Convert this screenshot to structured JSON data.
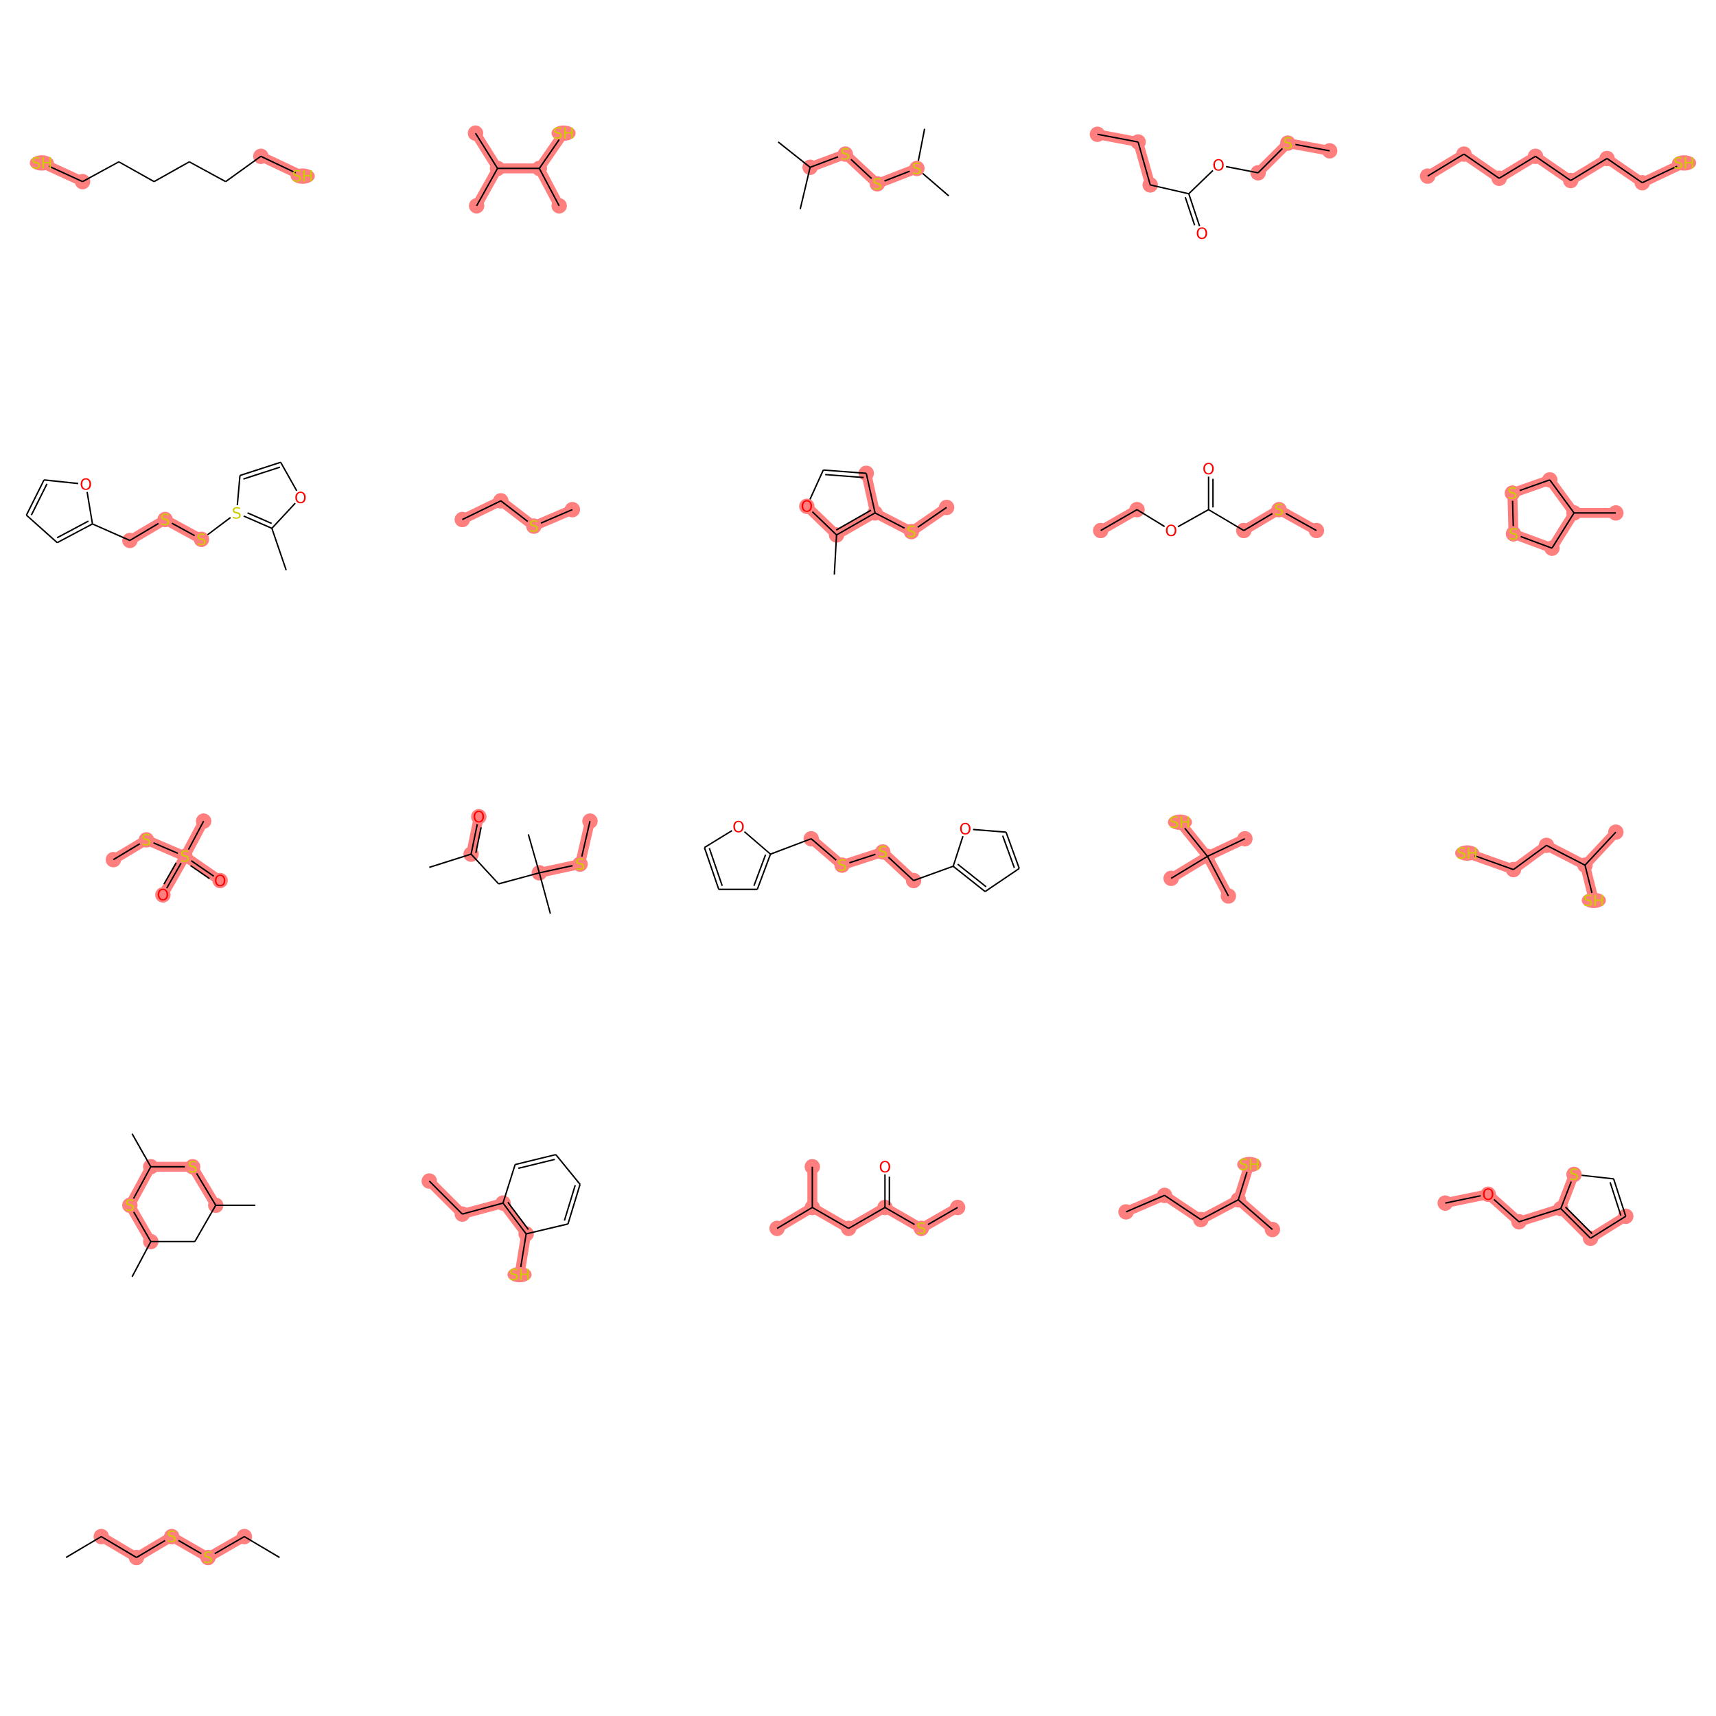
{
  "colors": {
    "bond": "#000000",
    "oxygen": "#ff0000",
    "sulfur": "#cccc00",
    "highlight": "#ff7f7f"
  },
  "molecules": [
    {
      "name": "molecule-1-octane-dithiol",
      "labels": [
        {
          "t": "SH",
          "el": "S"
        },
        {
          "t": "SH",
          "el": "S"
        }
      ]
    },
    {
      "name": "molecule-2-tetramethylethane-thiol",
      "labels": [
        {
          "t": "SH",
          "el": "S"
        }
      ]
    },
    {
      "name": "molecule-3-diisopropyl-trisulfide",
      "labels": [
        {
          "t": "S",
          "el": "S"
        },
        {
          "t": "S",
          "el": "S"
        },
        {
          "t": "S",
          "el": "S"
        }
      ]
    },
    {
      "name": "molecule-4-methylthiomethyl-butanoate",
      "labels": [
        {
          "t": "O",
          "el": "O"
        },
        {
          "t": "O",
          "el": "O"
        },
        {
          "t": "S",
          "el": "S"
        }
      ]
    },
    {
      "name": "molecule-5-octanethiol",
      "labels": [
        {
          "t": "SH",
          "el": "S"
        }
      ]
    },
    {
      "name": "molecule-6-furfuryl-methylfuryl-trisulfide",
      "labels": [
        {
          "t": "O",
          "el": "O"
        },
        {
          "t": "S",
          "el": "S"
        },
        {
          "t": "S",
          "el": "S"
        },
        {
          "t": "S",
          "el": "S"
        },
        {
          "t": "O",
          "el": "O"
        }
      ]
    },
    {
      "name": "molecule-7-diethyl-sulfide",
      "labels": [
        {
          "t": "S",
          "el": "S"
        }
      ]
    },
    {
      "name": "molecule-8-methylthio-methylfuran",
      "labels": [
        {
          "t": "O",
          "el": "O"
        },
        {
          "t": "S",
          "el": "S"
        }
      ]
    },
    {
      "name": "molecule-9-ethyl-ethylthio-acetate",
      "labels": [
        {
          "t": "O",
          "el": "O"
        },
        {
          "t": "O",
          "el": "O"
        },
        {
          "t": "S",
          "el": "S"
        }
      ]
    },
    {
      "name": "molecule-10-methyl-dithiolane",
      "labels": [
        {
          "t": "S",
          "el": "S"
        },
        {
          "t": "S",
          "el": "S"
        }
      ]
    },
    {
      "name": "molecule-11-methyl-methanethiosulfonate",
      "labels": [
        {
          "t": "S",
          "el": "S"
        },
        {
          "t": "S",
          "el": "S"
        },
        {
          "t": "O",
          "el": "O"
        },
        {
          "t": "O",
          "el": "O"
        }
      ]
    },
    {
      "name": "molecule-12-methylthio-methylpentanone",
      "labels": [
        {
          "t": "O",
          "el": "O"
        },
        {
          "t": "S",
          "el": "S"
        }
      ]
    },
    {
      "name": "molecule-13-difurfuryl-disulfide",
      "labels": [
        {
          "t": "O",
          "el": "O"
        },
        {
          "t": "S",
          "el": "S"
        },
        {
          "t": "S",
          "el": "S"
        },
        {
          "t": "O",
          "el": "O"
        }
      ]
    },
    {
      "name": "molecule-14-tert-butylthiol",
      "labels": [
        {
          "t": "SH",
          "el": "S"
        }
      ]
    },
    {
      "name": "molecule-15-methylbutane-dithiol",
      "labels": [
        {
          "t": "SH",
          "el": "S"
        },
        {
          "t": "SH",
          "el": "S"
        }
      ]
    },
    {
      "name": "molecule-16-trimethyl-dithiane",
      "labels": [
        {
          "t": "S",
          "el": "S"
        },
        {
          "t": "S",
          "el": "S"
        }
      ]
    },
    {
      "name": "molecule-17-ethylthiophenol",
      "labels": [
        {
          "t": "SH",
          "el": "S"
        }
      ]
    },
    {
      "name": "molecule-18-methyl-thio-isovalerate",
      "labels": [
        {
          "t": "O",
          "el": "O"
        },
        {
          "t": "S",
          "el": "S"
        }
      ]
    },
    {
      "name": "molecule-19-methylbutane-thiol",
      "labels": [
        {
          "t": "SH",
          "el": "S"
        }
      ]
    },
    {
      "name": "molecule-20-methylthiomethyl-furan",
      "labels": [
        {
          "t": "O",
          "el": "O"
        },
        {
          "t": "S",
          "el": "S"
        }
      ]
    },
    {
      "name": "molecule-21-dipropyl-disulfide",
      "labels": [
        {
          "t": "S",
          "el": "S"
        },
        {
          "t": "S",
          "el": "S"
        }
      ]
    }
  ]
}
